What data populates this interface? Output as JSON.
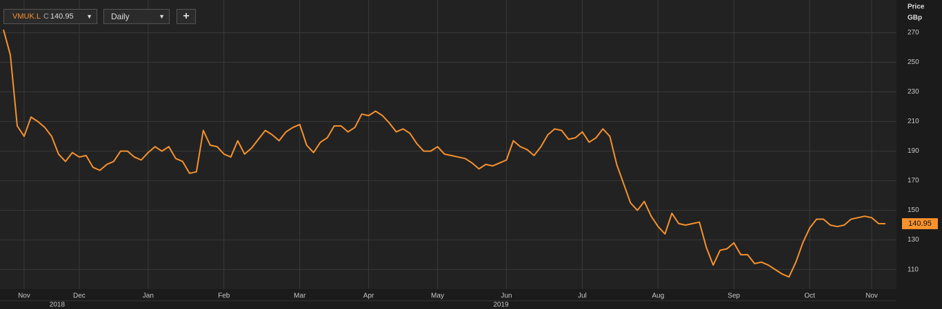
{
  "ui": {
    "symbol": "VMUK.L",
    "close_prefix": "C",
    "interval": "Daily",
    "add_button": "+"
  },
  "chart_data": {
    "type": "line",
    "y_label": "Price",
    "y_unit": "GBp",
    "series": [
      {
        "name": "VMUK.L",
        "color": "#f7922d",
        "values": [
          272,
          255,
          207,
          200,
          213,
          210,
          206,
          200,
          188,
          183,
          189,
          186,
          187,
          179,
          177,
          181,
          183,
          190,
          190,
          186,
          184,
          189,
          193,
          190,
          193,
          185,
          183,
          175,
          176,
          204,
          194,
          193,
          188,
          186,
          197,
          188,
          192,
          198,
          204,
          201,
          197,
          203,
          206,
          208,
          194,
          189,
          196,
          199,
          207,
          207,
          203,
          206,
          215,
          214,
          217,
          214,
          209,
          203,
          205,
          202,
          195,
          190,
          190,
          193,
          188,
          187,
          186,
          185,
          182,
          178,
          181,
          180,
          182,
          184,
          197,
          193,
          191,
          187,
          193,
          201,
          205,
          204,
          198,
          199,
          203,
          196,
          199,
          205,
          200,
          181,
          168,
          155,
          150,
          156,
          146,
          139,
          134,
          148,
          141,
          140,
          141,
          142,
          125,
          113,
          123,
          124,
          128,
          120,
          120,
          114,
          115,
          113,
          110,
          107,
          105,
          115,
          128,
          138,
          144,
          144,
          140,
          139,
          140,
          144,
          145,
          146,
          145,
          141,
          140.95
        ]
      }
    ],
    "xlim": [
      -0.5,
      129.6
    ],
    "xticks": [
      {
        "value": 3,
        "label": "Nov"
      },
      {
        "value": 11,
        "label": "Dec"
      },
      {
        "value": 21,
        "label": "Jan"
      },
      {
        "value": 32,
        "label": "Feb"
      },
      {
        "value": 43,
        "label": "Mar"
      },
      {
        "value": 53,
        "label": "Apr"
      },
      {
        "value": 63,
        "label": "May"
      },
      {
        "value": 73,
        "label": "Jun"
      },
      {
        "value": 84,
        "label": "Jul"
      },
      {
        "value": 95,
        "label": "Aug"
      },
      {
        "value": 106,
        "label": "Sep"
      },
      {
        "value": 117,
        "label": "Oct"
      },
      {
        "value": 126,
        "label": "Nov"
      }
    ],
    "year_ticks": [
      {
        "value": 7.8,
        "label": "2018"
      },
      {
        "value": 72.2,
        "label": "2019"
      }
    ],
    "ylim": [
      96.8,
      292.1
    ],
    "yticks": [
      110,
      130,
      150,
      170,
      190,
      210,
      230,
      250,
      270
    ],
    "grid": true
  }
}
